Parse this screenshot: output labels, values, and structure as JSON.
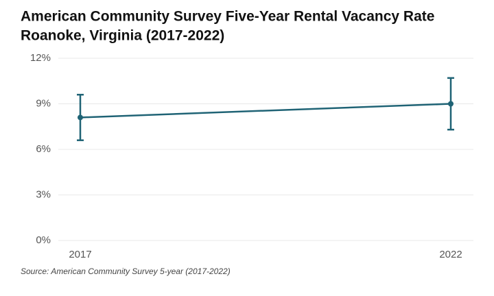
{
  "chart_data": {
    "type": "line",
    "title": [
      "American Community Survey Five-Year Rental Vacancy Rate",
      "Roanoke, Virginia (2017-2022)"
    ],
    "x": [
      2017,
      2022
    ],
    "xlim": [
      2017,
      2022
    ],
    "xticks": [
      2017,
      2022
    ],
    "values": [
      8.1,
      9.0
    ],
    "errors": [
      1.5,
      1.7
    ],
    "color": "#1f6375",
    "ylim": [
      0,
      12
    ],
    "yticks": [
      {
        "value": 0,
        "label": "0%"
      },
      {
        "value": 3,
        "label": "3%"
      },
      {
        "value": 6,
        "label": "6%"
      },
      {
        "value": 9,
        "label": "9%"
      },
      {
        "value": 12,
        "label": "12%"
      }
    ],
    "grid": true,
    "source": "Source: American Community Survey 5-year (2017-2022)"
  }
}
